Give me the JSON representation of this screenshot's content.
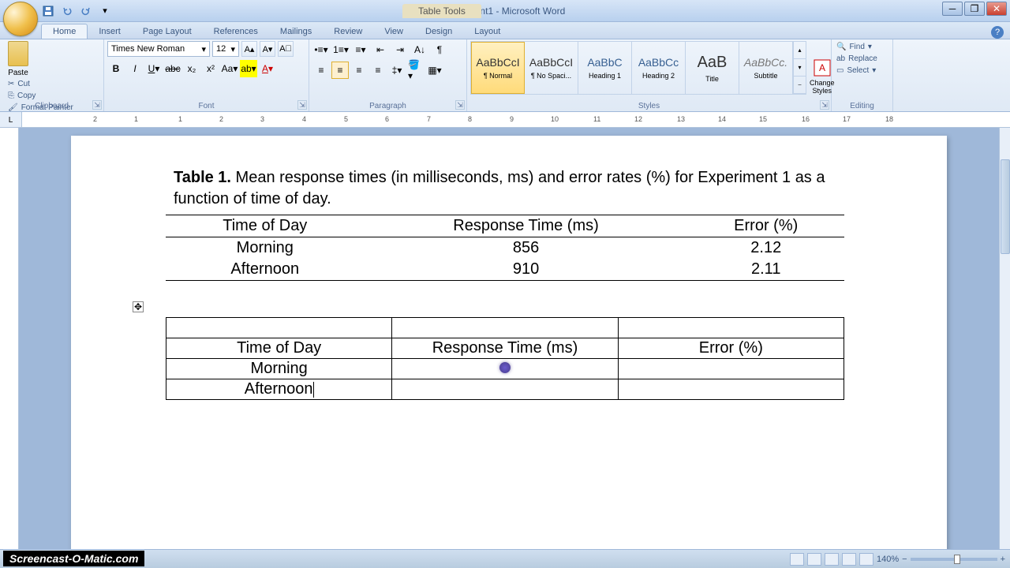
{
  "titlebar": {
    "document_title": "Document1 - Microsoft Word",
    "table_tools": "Table Tools"
  },
  "tabs": [
    "Home",
    "Insert",
    "Page Layout",
    "References",
    "Mailings",
    "Review",
    "View",
    "Design",
    "Layout"
  ],
  "active_tab": "Home",
  "clipboard": {
    "paste": "Paste",
    "cut": "Cut",
    "copy": "Copy",
    "format_painter": "Format Painter",
    "label": "Clipboard"
  },
  "font": {
    "name": "Times New Roman",
    "size": "12",
    "label": "Font"
  },
  "paragraph": {
    "label": "Paragraph"
  },
  "styles": {
    "items": [
      {
        "preview": "AaBbCcI",
        "name": "¶ Normal"
      },
      {
        "preview": "AaBbCcI",
        "name": "¶ No Spaci..."
      },
      {
        "preview": "AaBbC",
        "name": "Heading 1"
      },
      {
        "preview": "AaBbCc",
        "name": "Heading 2"
      },
      {
        "preview": "AaB",
        "name": "Title"
      },
      {
        "preview": "AaBbCc.",
        "name": "Subtitle"
      }
    ],
    "change": "Change Styles",
    "label": "Styles"
  },
  "editing": {
    "find": "Find",
    "replace": "Replace",
    "select": "Select",
    "label": "Editing"
  },
  "document": {
    "caption_bold": "Table 1.",
    "caption_rest": " Mean response times (in milliseconds, ms) and error rates (%) for Experiment 1 as a function of time of day.",
    "table1": {
      "headers": [
        "Time of Day",
        "Response Time (ms)",
        "Error (%)"
      ],
      "rows": [
        [
          "Morning",
          "856",
          "2.12"
        ],
        [
          "Afternoon",
          "910",
          "2.11"
        ]
      ]
    },
    "table2": {
      "rows": [
        [
          "",
          "",
          ""
        ],
        [
          "Time of Day",
          "Response Time (ms)",
          "Error (%)"
        ],
        [
          "Morning",
          "",
          ""
        ],
        [
          "Afternoon",
          "",
          ""
        ]
      ]
    }
  },
  "statusbar": {
    "zoom": "140%",
    "watermark": "Screencast-O-Matic.com"
  },
  "ruler_ticks": [
    2,
    1,
    1,
    2,
    3,
    4,
    5,
    6,
    7,
    8,
    9,
    10,
    11,
    12,
    13,
    14,
    15,
    16,
    17,
    18
  ]
}
